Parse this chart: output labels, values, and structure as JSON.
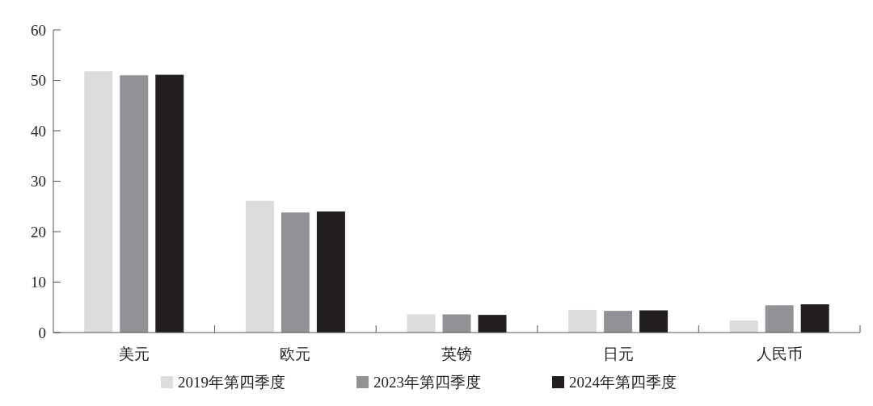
{
  "chart_data": {
    "type": "bar",
    "categories": [
      "美元",
      "欧元",
      "英镑",
      "日元",
      "人民币"
    ],
    "series": [
      {
        "name": "2019年第四季度",
        "color": "#dbdcde",
        "values": [
          51.8,
          26.1,
          3.6,
          4.5,
          2.4
        ]
      },
      {
        "name": "2023年第四季度",
        "color": "#919296",
        "values": [
          51.0,
          23.8,
          3.6,
          4.3,
          5.4
        ]
      },
      {
        "name": "2024年第四季度",
        "color": "#231f20",
        "values": [
          51.1,
          24.0,
          3.5,
          4.4,
          5.6
        ]
      }
    ],
    "ylim": [
      0,
      60
    ],
    "yticks": [
      0,
      10,
      20,
      30,
      40,
      50,
      60
    ],
    "grid": false,
    "legend": "bottom"
  }
}
